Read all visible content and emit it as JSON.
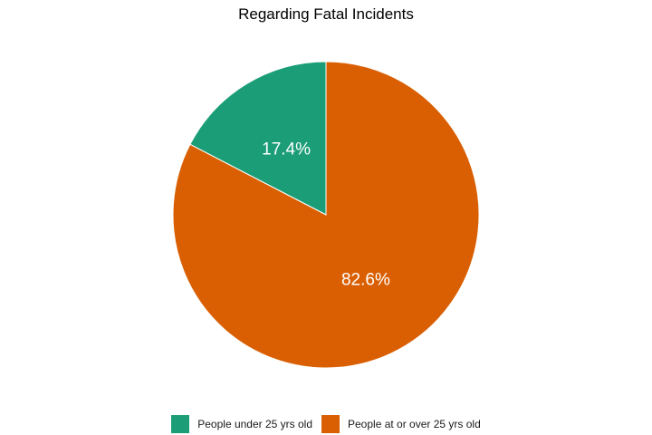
{
  "chart_data": {
    "type": "pie",
    "title": "Regarding Fatal Incidents",
    "categories": [
      "People under 25 yrs old",
      "People at or over 25 yrs old"
    ],
    "values": [
      17.4,
      82.6
    ],
    "labels": [
      "17.4%",
      "82.6%"
    ],
    "colors": [
      "#1b9e77",
      "#d95f02"
    ],
    "legend_position": "bottom"
  }
}
